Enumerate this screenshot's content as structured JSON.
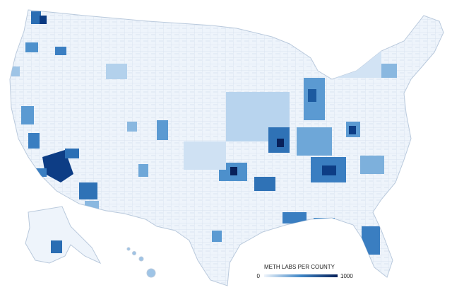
{
  "legend": {
    "title": "METH LABS PER COUNTY",
    "min": 0,
    "max": 1000
  }
}
